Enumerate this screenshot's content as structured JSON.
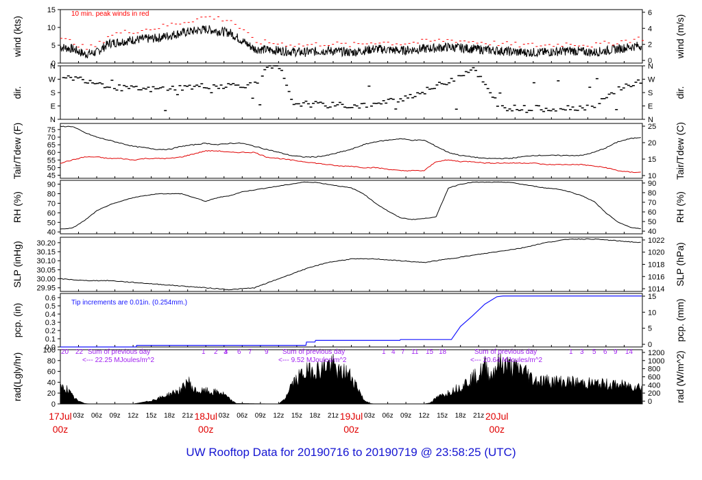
{
  "footer": {
    "title": "UW Rooftop Data for 20190716  to  20190719 @ 23:58:25  (UTC)"
  },
  "colors": {
    "trace": "#000000",
    "peak": "#ff0000",
    "dew": "#e00000",
    "precip": "#1414ff",
    "annot": "#a020f0",
    "day_label": "#e00000"
  },
  "chart_data": [
    {
      "id": "wind",
      "type": "line",
      "left_label": "wind (kts)",
      "right_label": "wind (m/s)",
      "left_ticks": [
        0,
        5,
        10,
        15
      ],
      "right_ticks": [
        0,
        2,
        4,
        6
      ],
      "ylim": [
        0,
        15
      ],
      "annotation": "10 min. peak winds in red",
      "x_hours": [
        0,
        2,
        4,
        6,
        8,
        12,
        16,
        20,
        24,
        28,
        32,
        36,
        40,
        44,
        48,
        52,
        56,
        60,
        64,
        68,
        72,
        76,
        80,
        84,
        88,
        92,
        95.9
      ],
      "series": [
        {
          "values": [
            4.5,
            4.0,
            2.5,
            3.0,
            5.5,
            6.5,
            7.0,
            8.5,
            9.5,
            8.5,
            4.0,
            3.5,
            3.0,
            3.5,
            3.0,
            4.0,
            3.5,
            4.0,
            4.5,
            4.0,
            3.5,
            3.0,
            3.0,
            3.5,
            3.0,
            4.0,
            5.0
          ]
        },
        {
          "values": [
            6.5,
            6.0,
            4.0,
            5.0,
            8.0,
            9.0,
            10.0,
            11.5,
            13.0,
            12.0,
            6.0,
            5.5,
            5.0,
            5.5,
            5.0,
            6.0,
            5.5,
            6.0,
            6.5,
            6.0,
            5.5,
            5.0,
            5.0,
            5.5,
            5.0,
            6.0,
            7.0
          ]
        }
      ]
    },
    {
      "id": "dir",
      "type": "scatter",
      "left_label": "dir.",
      "right_label": "dir.",
      "left_ticks": [
        "N",
        "E",
        "S",
        "W",
        "N"
      ],
      "right_ticks": [
        "N",
        "E",
        "S",
        "W",
        "N"
      ],
      "ylim": [
        0,
        360
      ],
      "x_hours": [
        0,
        2,
        4,
        6,
        8,
        10,
        12,
        14,
        16,
        18,
        20,
        22,
        24,
        26,
        28,
        30,
        32,
        34,
        36,
        38,
        40,
        44,
        48,
        52,
        56,
        60,
        64,
        68,
        72,
        76,
        80,
        84,
        88,
        92,
        95.9
      ],
      "series": [
        {
          "values": [
            270,
            280,
            265,
            250,
            220,
            210,
            205,
            200,
            205,
            210,
            215,
            220,
            225,
            225,
            230,
            232,
            230,
            345,
            350,
            110,
            105,
            95,
            90,
            100,
            140,
            190,
            260,
            350,
            80,
            75,
            72,
            78,
            85,
            210,
            260
          ]
        }
      ]
    },
    {
      "id": "temp",
      "type": "line",
      "left_label": "Tair/Tdew (F)",
      "right_label": "Tair/Tdew (C)",
      "left_ticks": [
        45,
        50,
        55,
        60,
        65,
        70,
        75
      ],
      "right_ticks": [
        10,
        15,
        20,
        25
      ],
      "ylim": [
        43,
        79
      ],
      "x_hours": [
        0,
        2,
        4,
        6,
        8,
        10,
        12,
        14,
        16,
        18,
        20,
        22,
        24,
        26,
        28,
        30,
        32,
        34,
        36,
        38,
        40,
        42,
        44,
        46,
        48,
        50,
        52,
        54,
        56,
        58,
        60,
        62,
        64,
        66,
        68,
        70,
        72,
        74,
        76,
        78,
        80,
        82,
        84,
        86,
        88,
        90,
        92,
        94,
        95.9
      ],
      "series": [
        {
          "name": "Tair",
          "values": [
            77,
            77,
            73,
            70,
            68,
            66,
            64,
            63,
            62,
            62,
            64,
            65,
            66,
            65,
            66,
            66,
            64,
            62,
            60,
            58,
            57,
            57,
            58,
            60,
            62,
            65,
            67,
            68,
            69,
            68,
            68,
            64,
            60,
            58,
            57,
            56,
            56,
            56,
            57,
            58,
            58,
            58,
            58,
            58,
            60,
            63,
            67,
            69,
            70
          ]
        },
        {
          "name": "Tdew",
          "values": [
            53,
            55,
            57,
            57,
            56,
            56,
            55,
            56,
            56,
            56,
            57,
            59,
            61,
            61,
            60,
            60,
            60,
            57,
            56,
            55,
            54,
            53,
            52,
            51,
            51,
            50,
            50,
            49,
            48,
            48,
            48,
            54,
            55,
            54,
            54,
            53,
            53,
            53,
            53,
            53,
            52,
            52,
            52,
            52,
            51,
            50,
            48,
            47,
            47
          ]
        }
      ]
    },
    {
      "id": "rh",
      "type": "line",
      "left_label": "RH (%)",
      "right_label": "RH (%)",
      "left_ticks": [
        40,
        50,
        60,
        70,
        80,
        90
      ],
      "right_ticks": [
        40,
        50,
        60,
        70,
        80,
        90
      ],
      "ylim": [
        38,
        94
      ],
      "x_hours": [
        0,
        2,
        4,
        6,
        8,
        10,
        12,
        14,
        16,
        18,
        20,
        22,
        24,
        26,
        28,
        30,
        32,
        34,
        36,
        38,
        40,
        42,
        44,
        46,
        48,
        50,
        52,
        54,
        56,
        58,
        60,
        62,
        64,
        66,
        68,
        70,
        72,
        74,
        76,
        78,
        80,
        82,
        84,
        86,
        88,
        90,
        92,
        94,
        95.9
      ],
      "series": [
        {
          "values": [
            43,
            44,
            52,
            62,
            68,
            72,
            76,
            78,
            80,
            80,
            80,
            76,
            72,
            76,
            78,
            82,
            84,
            86,
            88,
            90,
            92,
            92,
            90,
            88,
            86,
            80,
            70,
            62,
            55,
            53,
            54,
            56,
            86,
            90,
            92,
            92,
            92,
            92,
            90,
            88,
            86,
            85,
            82,
            78,
            72,
            60,
            50,
            45,
            43
          ]
        }
      ]
    },
    {
      "id": "slp",
      "type": "line",
      "left_label": "SLP (inHg)",
      "right_label": "SLP (hPa)",
      "left_ticks": [
        29.95,
        30.0,
        30.05,
        30.1,
        30.15,
        30.2
      ],
      "right_ticks": [
        1014,
        1016,
        1018,
        1020,
        1022
      ],
      "ylim": [
        29.93,
        30.23
      ],
      "x_hours": [
        0,
        4,
        8,
        12,
        16,
        20,
        24,
        28,
        32,
        36,
        40,
        44,
        48,
        52,
        56,
        60,
        64,
        68,
        72,
        76,
        80,
        84,
        88,
        92,
        95.9
      ],
      "series": [
        {
          "values": [
            30.0,
            29.99,
            29.99,
            29.98,
            29.97,
            29.96,
            29.95,
            29.94,
            29.95,
            30.0,
            30.05,
            30.09,
            30.11,
            30.11,
            30.1,
            30.09,
            30.11,
            30.13,
            30.15,
            30.17,
            30.2,
            30.22,
            30.22,
            30.21,
            30.2
          ]
        }
      ]
    },
    {
      "id": "pcp",
      "type": "line",
      "left_label": "pcp. (in)",
      "right_label": "pcp. (mm)",
      "left_ticks": [
        0.0,
        0.1,
        0.2,
        0.3,
        0.4,
        0.5,
        0.6
      ],
      "right_ticks": [
        0,
        5,
        10,
        15
      ],
      "ylim": [
        0,
        0.65
      ],
      "annotation": "Tip increments are 0.01in. (0.254mm.)",
      "x_hours": [
        0,
        12.5,
        12.6,
        40.5,
        40.6,
        42.0,
        42.1,
        56.0,
        56.1,
        64.5,
        66,
        68,
        70,
        72,
        73,
        95.9
      ],
      "series": [
        {
          "values": [
            0,
            0,
            0.02,
            0.02,
            0.06,
            0.06,
            0.08,
            0.08,
            0.09,
            0.09,
            0.25,
            0.38,
            0.52,
            0.61,
            0.62,
            0.62
          ]
        }
      ]
    },
    {
      "id": "rad",
      "type": "area",
      "left_label": "rad(Lgly/hr)",
      "right_label": "rad (W/m^2)",
      "left_ticks": [
        0,
        20,
        40,
        60,
        80,
        100
      ],
      "right_ticks": [
        0,
        200,
        400,
        600,
        800,
        1000,
        1200
      ],
      "ylim": [
        0,
        100
      ],
      "annotations": [
        "Sum of previous day",
        "<--- 22.25 MJoules/m^2",
        "Sum of previous day",
        "<--- 9.52 MJoules/m^2",
        "Sum of previous day",
        "<--- 20.64 MJoules/m^2"
      ],
      "hour_marks": [
        "20",
        "22",
        "1",
        "2",
        "3",
        "4",
        "6",
        "7",
        "9",
        "1",
        "4",
        "7",
        "11",
        "15",
        "18",
        "1",
        "3",
        "5",
        "6",
        "9",
        "14"
      ],
      "x_hours": [
        0,
        1,
        2,
        3,
        4,
        5,
        12,
        14,
        16,
        18,
        19,
        20,
        21,
        22,
        23,
        24,
        25,
        26,
        27,
        28,
        29,
        36,
        37,
        38,
        40,
        42,
        43,
        44,
        45,
        46,
        47,
        48,
        49,
        50,
        51,
        52,
        53,
        60,
        61,
        62,
        64,
        66,
        68,
        69,
        70,
        71,
        72,
        73,
        74,
        75,
        76,
        77,
        78,
        95.9
      ],
      "series": [
        {
          "values": [
            38,
            36,
            18,
            6,
            1,
            0,
            0,
            4,
            12,
            22,
            28,
            32,
            55,
            32,
            28,
            30,
            26,
            28,
            22,
            10,
            1,
            0,
            10,
            42,
            70,
            80,
            78,
            92,
            88,
            70,
            74,
            62,
            40,
            10,
            1,
            0,
            0,
            0,
            2,
            14,
            26,
            40,
            60,
            65,
            88,
            64,
            90,
            92,
            86,
            82,
            80,
            72,
            55,
            40
          ]
        }
      ]
    }
  ],
  "time_axis": {
    "hour_labels": [
      "03z",
      "06z",
      "09z",
      "12z",
      "15z",
      "18z",
      "21z",
      "03z",
      "06z",
      "09z",
      "12z",
      "15z",
      "18z",
      "21z",
      "03z",
      "06z",
      "09z",
      "12z",
      "15z",
      "18z",
      "21z"
    ],
    "day_labels": [
      {
        "day": "17Jul",
        "time": "00z"
      },
      {
        "day": "18Jul",
        "time": "00z"
      },
      {
        "day": "19Jul",
        "time": "00z"
      },
      {
        "day": "20Jul",
        "time": "00z"
      }
    ]
  }
}
